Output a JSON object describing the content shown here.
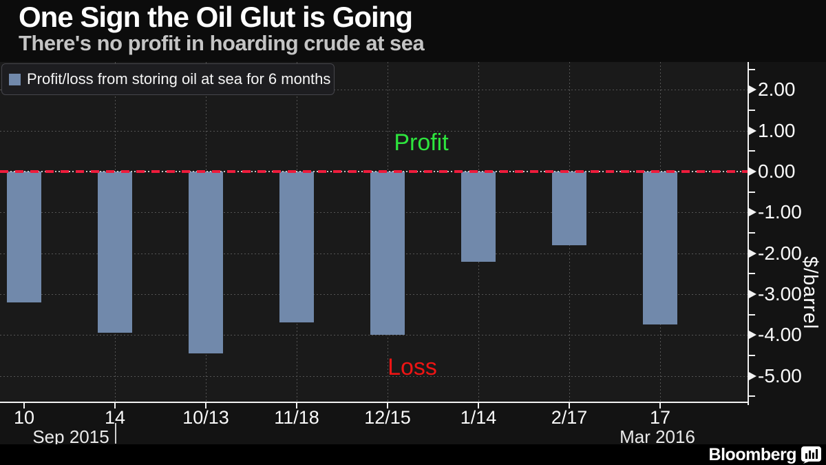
{
  "header": {
    "title": "One Sign the Oil Glut is Going",
    "subtitle": "There's no profit in hoarding crude at sea"
  },
  "legend": {
    "label": "Profit/loss from storing oil at sea for 6 months",
    "swatch_color": "#7189ab"
  },
  "annotations": {
    "profit": {
      "text": "Profit",
      "color": "#2ee53e"
    },
    "loss": {
      "text": "Loss",
      "color": "#ee1414"
    }
  },
  "chart_data": {
    "type": "bar",
    "title": "Profit/loss from storing oil at sea for 6 months",
    "categories": [
      "10",
      "14",
      "10/13",
      "11/18",
      "12/15",
      "1/14",
      "2/17",
      "17"
    ],
    "values": [
      -3.2,
      -3.95,
      -4.45,
      -3.7,
      -4.0,
      -2.2,
      -1.8,
      -3.75
    ],
    "periods": [
      "Sep 2015",
      "Mar 2016"
    ],
    "ylabel": "$/barrel",
    "xlabel": "",
    "y_ticks": [
      2,
      1,
      0,
      -1,
      -2,
      -3,
      -4,
      -5
    ],
    "y_tick_labels": [
      "2.00",
      "1.00",
      "0.00",
      "-1.00",
      "-2.00",
      "-3.00",
      "-4.00",
      "-5.00"
    ],
    "ylim": [
      -5.63,
      2.68
    ],
    "grid": true,
    "legend_position": "top-left",
    "bar_color": "#7189ab",
    "zero_line_color": "#ee1c3c",
    "zero_line_style": "dashed"
  },
  "footer": {
    "brand": "Bloomberg"
  }
}
